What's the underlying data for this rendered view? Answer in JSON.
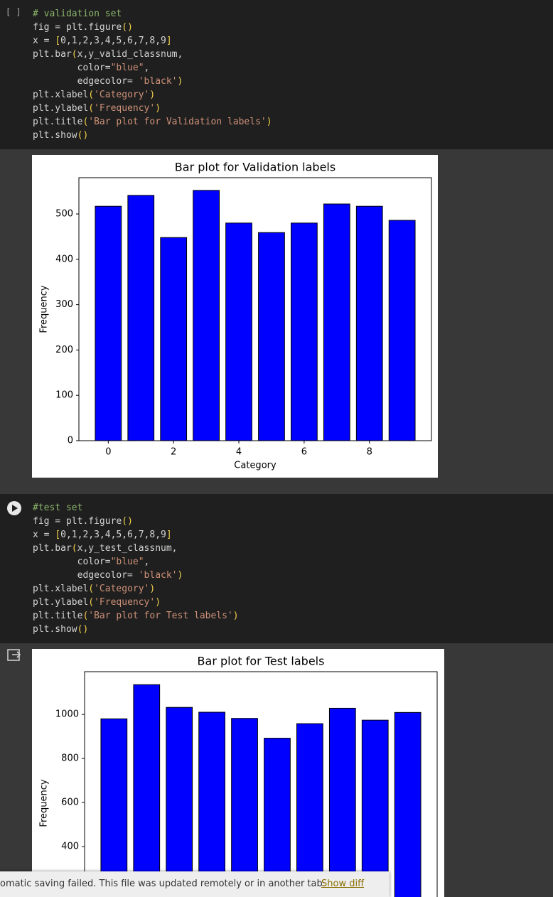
{
  "cells": [
    {
      "prompt": "[ ]",
      "code": [
        "# validation set",
        "fig = plt.figure()",
        "x = [0,1,2,3,4,5,6,7,8,9]",
        "plt.bar(x,y_valid_classnum,",
        "        color=\"blue\",",
        "        edgecolor= 'black')",
        "plt.xlabel('Category')",
        "plt.ylabel('Frequency')",
        "plt.title('Bar plot for Validation labels')",
        "plt.show()"
      ],
      "output": {
        "chart_data": {
          "type": "bar",
          "title": "Bar plot for Validation labels",
          "x_label": "Category",
          "y_label": "Frequency",
          "x": [
            0,
            1,
            2,
            3,
            4,
            5,
            6,
            7,
            8,
            9
          ],
          "values": [
            517,
            541,
            448,
            552,
            480,
            459,
            480,
            522,
            517,
            486
          ],
          "color": "#0000ff",
          "edgecolor": "#000000",
          "xlim": [
            -0.9,
            9.9
          ],
          "xticks": [
            0,
            2,
            4,
            6,
            8
          ],
          "ylim": [
            0,
            580
          ],
          "yticks": [
            0,
            100,
            200,
            300,
            400,
            500
          ]
        }
      }
    },
    {
      "code": [
        "#test set",
        "fig = plt.figure()",
        "x = [0,1,2,3,4,5,6,7,8,9]",
        "plt.bar(x,y_test_classnum,",
        "        color=\"blue\",",
        "        edgecolor= 'black')",
        "plt.xlabel('Category')",
        "plt.ylabel('Frequency')",
        "plt.title('Bar plot for Test labels')",
        "plt.show()"
      ],
      "output": {
        "chart_data": {
          "type": "bar",
          "title": "Bar plot for Test labels",
          "y_label": "Frequency",
          "x": [
            0,
            1,
            2,
            3,
            4,
            5,
            6,
            7,
            8,
            9
          ],
          "values": [
            980,
            1135,
            1032,
            1010,
            982,
            892,
            958,
            1028,
            974,
            1009
          ],
          "color": "#0000ff",
          "edgecolor": "#000000",
          "xlim": [
            -0.9,
            9.9
          ],
          "ylim": [
            0,
            1194
          ],
          "yticks": [
            400,
            600,
            800,
            1000
          ]
        }
      }
    }
  ],
  "toast": {
    "message": "omatic saving failed. This file was updated remotely or in another tab.",
    "action": "Show diff"
  }
}
